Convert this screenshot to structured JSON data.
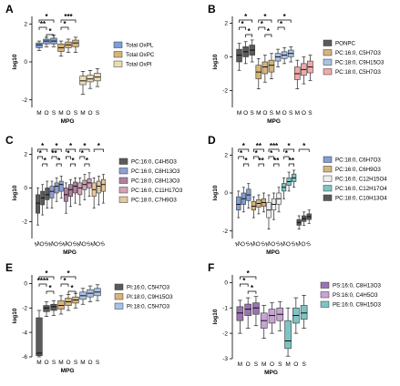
{
  "chart_data": [
    {
      "type": "boxplot",
      "letter": "A",
      "ylabel": "log10",
      "xlabel": "MPG",
      "ylim": [
        -2.4,
        2.4
      ],
      "yticks": [
        2,
        0,
        -2
      ],
      "group_labels": [
        "M",
        "O",
        "S"
      ],
      "series": [
        {
          "name": "Total OxPL",
          "color": "#7f9fd6",
          "boxes": [
            [
              0.6,
              0.75,
              0.9,
              1.0,
              1.1
            ],
            [
              0.8,
              0.95,
              1.1,
              1.2,
              1.3
            ],
            [
              0.8,
              0.95,
              1.1,
              1.25,
              1.4
            ]
          ]
        },
        {
          "name": "Total OxPC",
          "color": "#d6b47a",
          "boxes": [
            [
              0.3,
              0.55,
              0.75,
              0.95,
              1.1
            ],
            [
              0.5,
              0.75,
              0.9,
              1.05,
              1.2
            ],
            [
              0.5,
              0.8,
              1.0,
              1.15,
              1.3
            ]
          ]
        },
        {
          "name": "Total OxPI",
          "color": "#ecdcb2",
          "boxes": [
            [
              -1.7,
              -1.2,
              -1.0,
              -0.75,
              -0.5
            ],
            [
              -1.4,
              -1.05,
              -0.9,
              -0.7,
              -0.45
            ],
            [
              -1.3,
              -1.0,
              -0.8,
              -0.6,
              -0.35
            ]
          ]
        }
      ],
      "annotations": [
        "*",
        "**",
        "*",
        "***",
        "*"
      ]
    },
    {
      "type": "boxplot",
      "letter": "B",
      "ylabel": "log10",
      "xlabel": "MPG",
      "ylim": [
        -3,
        2.4
      ],
      "yticks": [
        2,
        0,
        -2
      ],
      "group_labels": [
        "M",
        "O",
        "S"
      ],
      "series": [
        {
          "name": "PONPC",
          "color": "#5a5a5a",
          "boxes": [
            [
              -0.8,
              -0.3,
              0.1,
              0.45,
              0.8
            ],
            [
              -0.4,
              0.0,
              0.3,
              0.6,
              0.9
            ],
            [
              -0.3,
              0.1,
              0.4,
              0.7,
              1.0
            ]
          ]
        },
        {
          "name": "PC:16:0, C5H7O3",
          "color": "#d6b47a",
          "boxes": [
            [
              -1.9,
              -1.3,
              -0.9,
              -0.5,
              -0.1
            ],
            [
              -1.5,
              -1.0,
              -0.6,
              -0.3,
              0.1
            ],
            [
              -1.3,
              -0.9,
              -0.5,
              -0.2,
              0.2
            ]
          ]
        },
        {
          "name": "PC:18:0, C9H15O3",
          "color": "#a9c1e6",
          "boxes": [
            [
              -0.6,
              -0.25,
              0.0,
              0.2,
              0.45
            ],
            [
              -0.4,
              -0.1,
              0.1,
              0.3,
              0.55
            ],
            [
              -0.3,
              0.0,
              0.2,
              0.4,
              0.6
            ]
          ]
        },
        {
          "name": "PC:18:0, C5H7O3",
          "color": "#f2a7a7",
          "boxes": [
            [
              -1.9,
              -1.35,
              -1.0,
              -0.6,
              -0.2
            ],
            [
              -1.6,
              -1.1,
              -0.75,
              -0.4,
              0.0
            ],
            [
              -1.4,
              -0.95,
              -0.6,
              -0.25,
              0.1
            ]
          ]
        }
      ],
      "annotations": [
        "*",
        "*",
        "*",
        "*",
        "*",
        "*",
        "*",
        "*"
      ]
    },
    {
      "type": "boxplot",
      "letter": "C",
      "ylabel": "log10",
      "xlabel": "MPG",
      "ylim": [
        -3,
        2.4
      ],
      "yticks": [
        2,
        0,
        -2
      ],
      "group_labels": [
        "M",
        "O",
        "S"
      ],
      "series": [
        {
          "name": "PC:16:0, C4H5O3",
          "color": "#5a5a5a",
          "boxes": [
            [
              -2.2,
              -1.5,
              -0.9,
              -0.4,
              0.0
            ],
            [
              -1.6,
              -1.0,
              -0.6,
              -0.2,
              0.2
            ],
            [
              -1.2,
              -0.7,
              -0.4,
              0.0,
              0.4
            ]
          ]
        },
        {
          "name": "PC:16:0, C8H13O3",
          "color": "#8da0d8",
          "boxes": [
            [
              -1.2,
              -0.6,
              -0.2,
              0.1,
              0.4
            ],
            [
              -0.8,
              -0.3,
              0.1,
              0.3,
              0.6
            ],
            [
              -0.6,
              -0.2,
              0.2,
              0.4,
              0.7
            ]
          ]
        },
        {
          "name": "PC:18:0, C8H13O3",
          "color": "#b07fa0",
          "boxes": [
            [
              -1.5,
              -0.8,
              -0.4,
              0.0,
              0.3
            ],
            [
              -1.1,
              -0.5,
              -0.1,
              0.2,
              0.5
            ],
            [
              -0.9,
              -0.3,
              0.1,
              0.35,
              0.6
            ]
          ]
        },
        {
          "name": "PC:16:0, C11H17O3",
          "color": "#d4a3b8",
          "boxes": [
            [
              -1.0,
              -0.4,
              0.0,
              0.3,
              0.6
            ],
            [
              -0.7,
              -0.1,
              0.2,
              0.45,
              0.8
            ],
            [
              -0.5,
              0.0,
              0.3,
              0.55,
              0.9
            ]
          ]
        },
        {
          "name": "PC:18:0, C7H9O3",
          "color": "#e6c79a",
          "boxes": [
            [
              -1.2,
              -0.5,
              -0.1,
              0.3,
              0.6
            ],
            [
              -1.0,
              -0.3,
              0.1,
              0.4,
              0.7
            ],
            [
              -0.9,
              -0.2,
              0.2,
              0.5,
              0.8
            ]
          ]
        }
      ],
      "annotations": [
        "*",
        "*",
        "*",
        "*",
        "**",
        "*",
        "*",
        "*",
        "*",
        "*",
        "*",
        "*",
        "*"
      ]
    },
    {
      "type": "boxplot",
      "letter": "D",
      "ylabel": "log10",
      "xlabel": "MPG",
      "ylim": [
        -2.4,
        2.4
      ],
      "yticks": [
        2,
        0,
        -2
      ],
      "group_labels": [
        "M",
        "O",
        "S"
      ],
      "series": [
        {
          "name": "PC:18:0, C6H7O3",
          "color": "#7f9fd6",
          "boxes": [
            [
              -1.3,
              -0.9,
              -0.6,
              -0.2,
              0.1
            ],
            [
              -1.0,
              -0.6,
              -0.3,
              0.0,
              0.3
            ],
            [
              -0.8,
              -0.4,
              -0.1,
              0.2,
              0.5
            ]
          ]
        },
        {
          "name": "PC:16:0, C6H9O3",
          "color": "#d6b47a",
          "boxes": [
            [
              -1.3,
              -0.9,
              -0.7,
              -0.45,
              -0.2
            ],
            [
              -1.1,
              -0.75,
              -0.55,
              -0.35,
              -0.1
            ],
            [
              -1.0,
              -0.7,
              -0.5,
              -0.3,
              0.0
            ]
          ]
        },
        {
          "name": "PC:16:0, C12H15O4",
          "color": "#eeeeee",
          "boxes": [
            [
              -1.9,
              -1.3,
              -0.9,
              -0.5,
              -0.1
            ],
            [
              -1.4,
              -0.9,
              -0.6,
              -0.3,
              0.0
            ],
            [
              -1.0,
              -0.6,
              -0.3,
              0.0,
              0.3
            ]
          ]
        },
        {
          "name": "PC:16:0, C12H17O4",
          "color": "#7fc4c4",
          "boxes": [
            [
              -0.3,
              0.1,
              0.3,
              0.5,
              0.8
            ],
            [
              0.1,
              0.4,
              0.6,
              0.8,
              1.1
            ],
            [
              0.3,
              0.6,
              0.8,
              1.0,
              1.2
            ]
          ]
        },
        {
          "name": "PC:18:0, C10H13O4",
          "color": "#5a5a5a",
          "boxes": [
            [
              -1.9,
              -1.7,
              -1.55,
              -1.4,
              -1.2
            ],
            [
              -1.7,
              -1.5,
              -1.35,
              -1.2,
              -1.0
            ],
            [
              -1.6,
              -1.4,
              -1.25,
              -1.1,
              -0.9
            ]
          ]
        }
      ],
      "annotations": [
        "*",
        "*",
        "*",
        "**",
        "*",
        "**",
        "***",
        "*",
        "**",
        "*",
        "*",
        "**",
        "*"
      ]
    },
    {
      "type": "boxplot",
      "letter": "E",
      "ylabel": "log10",
      "xlabel": "MPG",
      "ylim": [
        -6,
        0.7
      ],
      "yticks": [
        0,
        -2,
        -4,
        -6
      ],
      "group_labels": [
        "M",
        "O",
        "S"
      ],
      "series": [
        {
          "name": "PI:16:0, C5H7O3",
          "color": "#5a5a5a",
          "boxes": [
            [
              -6.0,
              -5.9,
              -5.7,
              -2.8,
              -2.2
            ],
            [
              -2.7,
              -2.3,
              -2.0,
              -1.8,
              -1.5
            ],
            [
              -2.6,
              -2.2,
              -1.9,
              -1.7,
              -1.4
            ]
          ]
        },
        {
          "name": "PI:18:0, C9H15O3",
          "color": "#d6b47a",
          "boxes": [
            [
              -2.5,
              -2.1,
              -1.8,
              -1.4,
              -1.0
            ],
            [
              -2.2,
              -1.8,
              -1.5,
              -1.2,
              -0.9
            ],
            [
              -2.0,
              -1.6,
              -1.35,
              -1.1,
              -0.8
            ]
          ]
        },
        {
          "name": "PI:18:0, C5H7O3",
          "color": "#a9c1e6",
          "boxes": [
            [
              -1.7,
              -1.3,
              -1.0,
              -0.7,
              -0.4
            ],
            [
              -1.5,
              -1.1,
              -0.8,
              -0.5,
              -0.2
            ],
            [
              -1.4,
              -1.0,
              -0.7,
              -0.4,
              -0.1
            ]
          ]
        }
      ],
      "annotations": [
        "*",
        "****",
        "*",
        "*",
        "*",
        "*"
      ]
    },
    {
      "type": "boxplot",
      "letter": "F",
      "ylabel": "log10",
      "xlabel": "MPG",
      "ylim": [
        -3,
        0.3
      ],
      "yticks": [
        0,
        -1,
        -2,
        -3
      ],
      "group_labels": [
        "M",
        "O",
        "S"
      ],
      "series": [
        {
          "name": "PS:16:0, C8H13O3",
          "color": "#9b73b3",
          "boxes": [
            [
              -2.0,
              -1.5,
              -1.2,
              -0.95,
              -0.7
            ],
            [
              -1.8,
              -1.3,
              -1.05,
              -0.85,
              -0.6
            ],
            [
              -1.7,
              -1.25,
              -1.0,
              -0.8,
              -0.55
            ]
          ]
        },
        {
          "name": "PS:16:0, C4H5O3",
          "color": "#c8a3d4",
          "boxes": [
            [
              -2.2,
              -1.8,
              -1.5,
              -1.2,
              -0.9
            ],
            [
              -2.0,
              -1.6,
              -1.3,
              -1.05,
              -0.8
            ],
            [
              -1.9,
              -1.5,
              -1.25,
              -1.0,
              -0.75
            ]
          ]
        },
        {
          "name": "PE:16:0, C9H15O3",
          "color": "#7fc4c4",
          "boxes": [
            [
              -2.9,
              -2.6,
              -2.3,
              -1.5,
              -1.0
            ],
            [
              -2.0,
              -1.6,
              -1.3,
              -1.0,
              -0.6
            ],
            [
              -1.8,
              -1.45,
              -1.2,
              -0.9,
              -0.5
            ]
          ]
        }
      ],
      "annotations": [
        "*",
        "*",
        "*"
      ]
    }
  ]
}
